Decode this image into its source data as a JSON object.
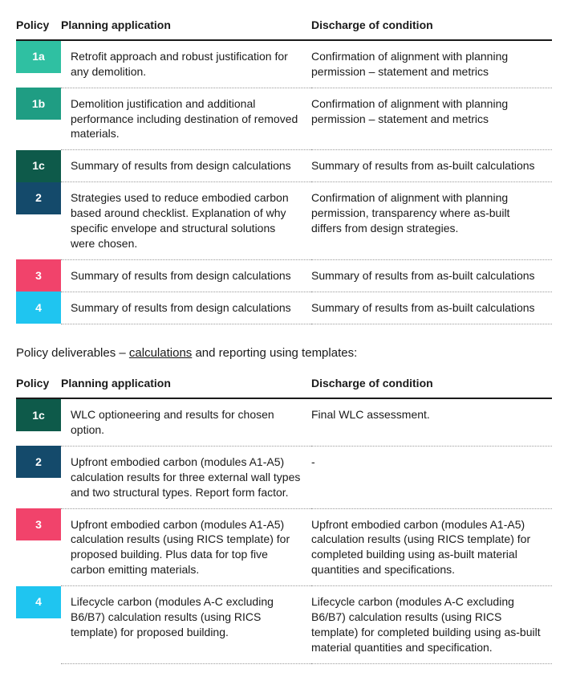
{
  "colors": {
    "1a": "#2fc0a2",
    "1b": "#1f9d83",
    "1c": "#0e5a4a",
    "2": "#144a6b",
    "3": "#f1436b",
    "4": "#1fc5f0"
  },
  "table1": {
    "headers": {
      "policy": "Policy",
      "plan": "Planning application",
      "discharge": "Discharge of condition"
    },
    "rows": [
      {
        "policy": "1a",
        "plan": "Retrofit approach and robust justification for any demolition.",
        "discharge": "Confirmation of alignment with planning permission – statement and metrics"
      },
      {
        "policy": "1b",
        "plan": "Demolition justification and additional performance including destination of removed materials.",
        "discharge": "Confirmation of alignment with planning permission – statement and metrics"
      },
      {
        "policy": "1c",
        "plan": "Summary of results from design calculations",
        "discharge": "Summary of results from as-built calculations"
      },
      {
        "policy": "2",
        "plan": "Strategies used to reduce embodied carbon based around checklist. Explanation of why specific envelope and structural solutions were chosen.",
        "discharge": "Confirmation of alignment with planning permission, transparency where as-built differs from design strategies."
      },
      {
        "policy": "3",
        "plan": "Summary of results from design calculations",
        "discharge": "Summary of results from as-built calculations"
      },
      {
        "policy": "4",
        "plan": "Summary of results from design calculations",
        "discharge": "Summary of results from as-built calculations"
      }
    ]
  },
  "caption": {
    "prefix": "Policy deliverables – ",
    "underlined": "calculations",
    "suffix": " and reporting using templates:"
  },
  "table2": {
    "headers": {
      "policy": "Policy",
      "plan": "Planning application",
      "discharge": "Discharge of condition"
    },
    "rows": [
      {
        "policy": "1c",
        "plan": "WLC optioneering and results for chosen option.",
        "discharge": "Final WLC assessment."
      },
      {
        "policy": "2",
        "plan": "Upfront embodied carbon (modules A1-A5) calculation results for three external wall types and two structural types. Report form factor.",
        "discharge": "-"
      },
      {
        "policy": "3",
        "plan": "Upfront embodied carbon (modules A1-A5) calculation results (using RICS template) for proposed building. Plus data for top five carbon emitting materials.",
        "discharge": "Upfront embodied carbon (modules A1-A5) calculation results (using RICS template) for completed building using as-built material quantities and specifications."
      },
      {
        "policy": "4",
        "plan": "Lifecycle carbon (modules A-C excluding B6/B7) calculation results (using RICS template) for proposed building.",
        "discharge": "Lifecycle carbon (modules A-C excluding B6/B7) calculation results (using RICS template) for completed building using as-built material quantities and specification."
      }
    ]
  }
}
